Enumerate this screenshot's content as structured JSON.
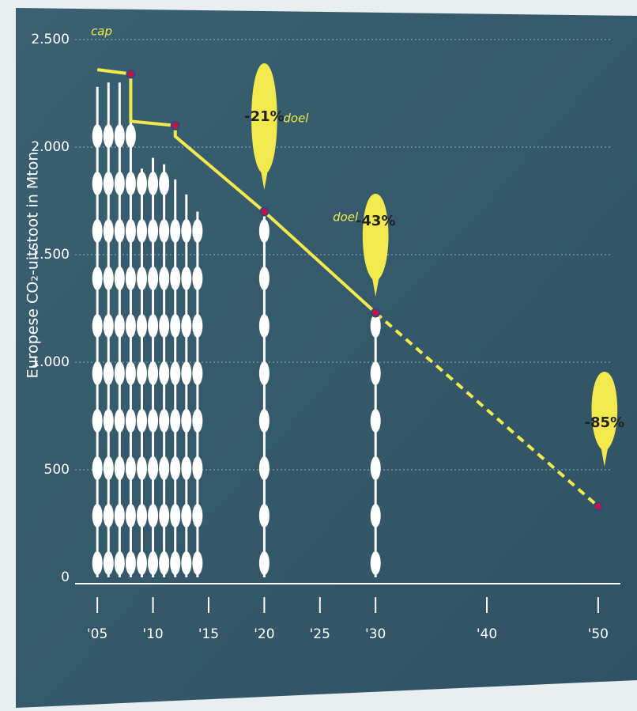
{
  "chart_data": {
    "type": "bar",
    "y_label": "Europese CO₂-uitstoot in Mton",
    "x": [
      2005,
      2006,
      2007,
      2008,
      2009,
      2010,
      2011,
      2012,
      2013,
      2014,
      2020,
      2030
    ],
    "values": [
      2280,
      2300,
      2300,
      2150,
      1900,
      1950,
      1920,
      1850,
      1780,
      1700,
      1700,
      1230
    ],
    "color": "#ffffff",
    "series": [
      {
        "x": [
          2005,
          2008,
          2008,
          2012,
          2012,
          2020,
          2030
        ],
        "values": [
          2360,
          2340,
          2120,
          2100,
          2050,
          1700,
          1230
        ],
        "color": "#f2e94e",
        "dash": false
      },
      {
        "x": [
          2030,
          2050
        ],
        "values": [
          1230,
          330
        ],
        "color": "#f2e94e",
        "dash": true
      }
    ],
    "annotations": [
      "cap",
      "-21%",
      "doel",
      "doel",
      "-43%",
      "-85%"
    ],
    "xlim": [
      2003,
      2052
    ],
    "xticks": [
      {
        "value": 2005,
        "label": "'05"
      },
      {
        "value": 2010,
        "label": "'10"
      },
      {
        "value": 2015,
        "label": "'15"
      },
      {
        "value": 2020,
        "label": "'20"
      },
      {
        "value": 2025,
        "label": "'25"
      },
      {
        "value": 2030,
        "label": "'30"
      },
      {
        "value": 2040,
        "label": "'40"
      },
      {
        "value": 2050,
        "label": "'50"
      }
    ],
    "ylim": [
      0,
      2500
    ],
    "yticks": [
      0,
      500,
      {
        "value": 1000,
        "label": "1.000"
      },
      {
        "value": 1500,
        "label": "1.500"
      },
      {
        "value": 2000,
        "label": "2.000"
      },
      {
        "value": 2500,
        "label": "2.500"
      }
    ],
    "grid": true
  }
}
